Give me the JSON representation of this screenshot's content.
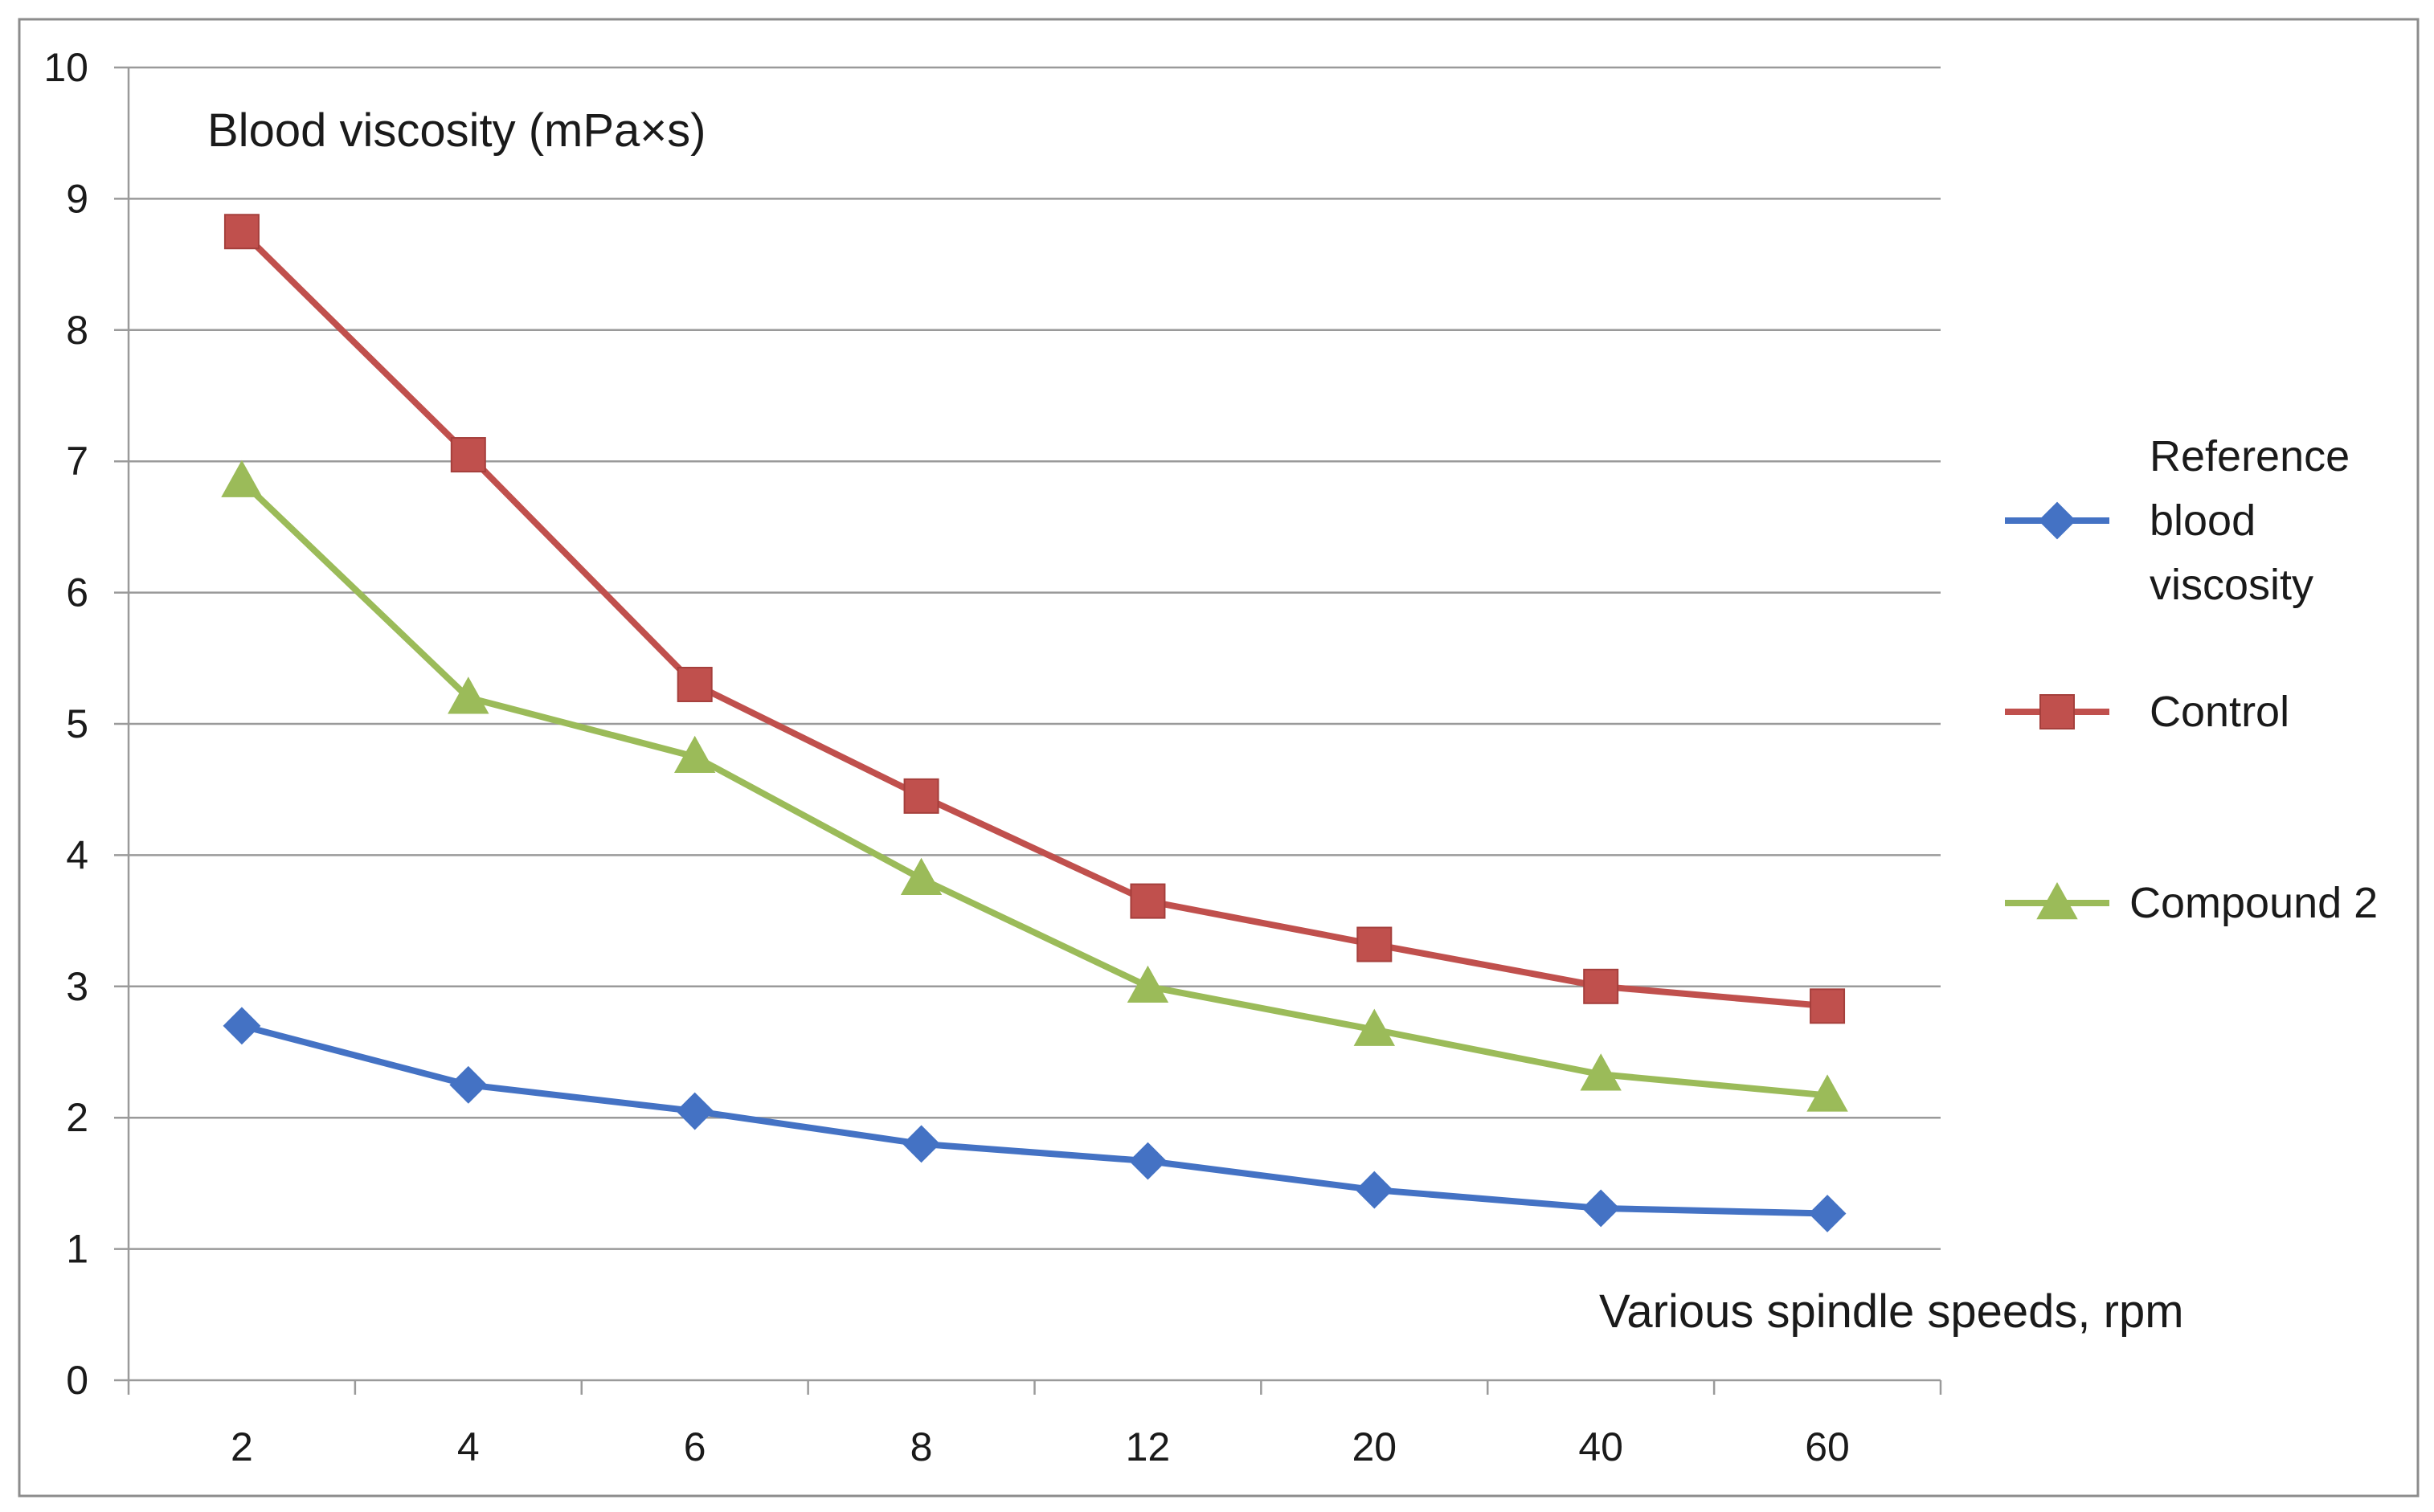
{
  "chart_data": {
    "type": "line",
    "title": "",
    "ylabel": "Blood viscosity (mPa×s)",
    "xlabel": "Various spindle speeds, rpm",
    "categories": [
      "2",
      "4",
      "6",
      "8",
      "12",
      "20",
      "40",
      "60"
    ],
    "ylim": [
      0,
      10
    ],
    "yticks": [
      "0",
      "1",
      "2",
      "3",
      "4",
      "5",
      "6",
      "7",
      "8",
      "9",
      "10"
    ],
    "grid": true,
    "legend_position": "right",
    "series": [
      {
        "name": "Reference blood viscosity",
        "legend_lines": [
          "Reference",
          "blood",
          "viscosity"
        ],
        "color": "#4472C4",
        "marker": "diamond",
        "values": [
          2.7,
          2.25,
          2.05,
          1.8,
          1.67,
          1.45,
          1.31,
          1.27
        ]
      },
      {
        "name": "Control",
        "legend_lines": [
          "Control"
        ],
        "color": "#C0504D",
        "marker": "square",
        "values": [
          8.75,
          7.05,
          5.3,
          4.45,
          3.65,
          3.32,
          3.0,
          2.85
        ]
      },
      {
        "name": "Compound 2",
        "legend_lines": [
          "Compound 2"
        ],
        "color": "#9BBB59",
        "marker": "triangle",
        "values": [
          6.85,
          5.2,
          4.75,
          3.82,
          3.0,
          2.67,
          2.33,
          2.17
        ]
      }
    ]
  }
}
